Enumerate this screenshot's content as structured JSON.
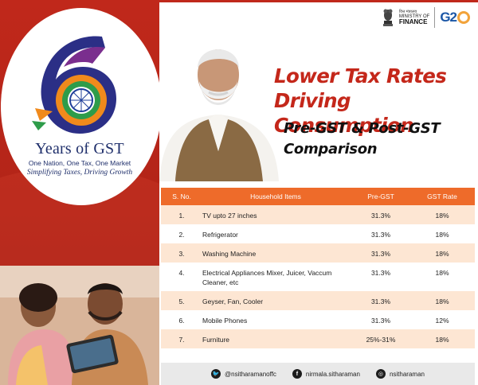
{
  "branding": {
    "gst_years_number": "6",
    "gst_title": "Years of GST",
    "gst_tagline_1": "One Nation, One Tax, One Market",
    "gst_tagline_2": "Simplifying Taxes, Driving Growth",
    "ministry_hindi": "वित्त मंत्रालय",
    "ministry_line1": "MINISTRY OF",
    "ministry_line2": "FINANCE",
    "g20_text": "G2"
  },
  "headline": {
    "title_line1": "Lower Tax Rates",
    "title_line2": "Driving Consumption",
    "subtitle_line1": "Pre-GST & Post-GST",
    "subtitle_line2": "Comparison"
  },
  "table": {
    "headers": {
      "sno": "S. No.",
      "item": "Household Items",
      "pre": "Pre-GST",
      "rate": "GST Rate"
    },
    "rows": [
      {
        "sno": "1.",
        "item": "TV upto 27 inches",
        "pre": "31.3%",
        "rate": "18%"
      },
      {
        "sno": "2.",
        "item": "Refrigerator",
        "pre": "31.3%",
        "rate": "18%"
      },
      {
        "sno": "3.",
        "item": "Washing Machine",
        "pre": "31.3%",
        "rate": "18%"
      },
      {
        "sno": "4.",
        "item": "Electrical Appliances Mixer, Juicer, Vaccum Cleaner, etc",
        "pre": "31.3%",
        "rate": "18%"
      },
      {
        "sno": "5.",
        "item": "Geyser, Fan, Cooler",
        "pre": "31.3%",
        "rate": "18%"
      },
      {
        "sno": "6.",
        "item": "Mobile Phones",
        "pre": "31.3%",
        "rate": "12%"
      },
      {
        "sno": "7.",
        "item": "Furniture",
        "pre": "25%-31%",
        "rate": "18%"
      }
    ]
  },
  "footer": {
    "twitter": "@nsitharamanoffc",
    "facebook": "nirmala.sitharaman",
    "instagram": "nsitharaman"
  },
  "colors": {
    "brand_red": "#c4271a",
    "table_header": "#ee6b2a",
    "row_tint": "#fde6d3",
    "navy": "#1f2f6b"
  }
}
